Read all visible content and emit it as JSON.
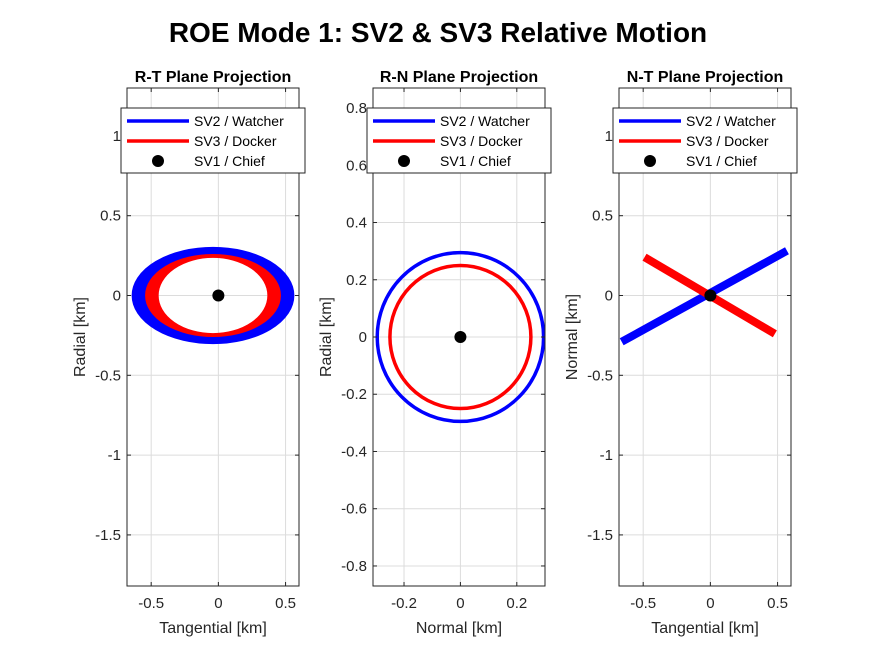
{
  "title": "ROE Mode 1: SV2 & SV3 Relative Motion",
  "colors": {
    "sv2": "#0000ff",
    "sv3": "#ff0000",
    "sv1": "#000000"
  },
  "legend": {
    "placement": "top",
    "entries": [
      {
        "label": "SV2 / Watcher",
        "color": "#0000ff",
        "marker": "line"
      },
      {
        "label": "SV3 / Docker",
        "color": "#ff0000",
        "marker": "line"
      },
      {
        "label": "SV1 / Chief",
        "color": "#000000",
        "marker": "dot"
      }
    ]
  },
  "chart_data": [
    {
      "type": "line",
      "title": "R-T Plane Projection",
      "xlabel": "Tangential [km]",
      "ylabel": "Radial [km]",
      "xlim": [
        -0.68,
        0.6
      ],
      "ylim": [
        -1.82,
        1.3
      ],
      "xticks": [
        -0.5,
        0,
        0.5
      ],
      "xtick_labels": [
        "-0.5",
        "0",
        "0.5"
      ],
      "yticks": [
        -1.5,
        -1,
        -0.5,
        0,
        0.5,
        1
      ],
      "ytick_labels": [
        "-1.5",
        "-1",
        "-0.5",
        "0",
        "0.5",
        "1"
      ],
      "grid": true,
      "series": [
        {
          "name": "SV2 / Watcher",
          "shape": "ellipse-band",
          "center": [
            -0.04,
            0
          ],
          "rx_outer": 0.6,
          "rx_inner": 0.5,
          "ry_outer": 0.3,
          "ry_inner": 0.255
        },
        {
          "name": "SV3 / Docker",
          "shape": "ellipse-band",
          "center": [
            -0.04,
            0
          ],
          "rx_outer": 0.5,
          "rx_inner": 0.41,
          "ry_outer": 0.255,
          "ry_inner": 0.24
        },
        {
          "name": "SV1 / Chief",
          "shape": "point",
          "x": 0,
          "y": 0
        }
      ]
    },
    {
      "type": "line",
      "title": "R-N Plane Projection",
      "xlabel": "Normal [km]",
      "ylabel": "Radial [km]",
      "xlim": [
        -0.31,
        0.3
      ],
      "ylim": [
        -0.87,
        0.87
      ],
      "xticks": [
        -0.2,
        0,
        0.2
      ],
      "xtick_labels": [
        "-0.2",
        "0",
        "0.2"
      ],
      "yticks": [
        -0.8,
        -0.6,
        -0.4,
        -0.2,
        0,
        0.2,
        0.4,
        0.6,
        0.8
      ],
      "ytick_labels": [
        "-0.8",
        "-0.6",
        "-0.4",
        "-0.2",
        "0",
        "0.2",
        "0.4",
        "0.6",
        "0.8"
      ],
      "grid": true,
      "series": [
        {
          "name": "SV2 / Watcher",
          "shape": "circle",
          "center": [
            0,
            0
          ],
          "r": 0.295
        },
        {
          "name": "SV3 / Docker",
          "shape": "circle",
          "center": [
            0,
            0
          ],
          "r": 0.25
        },
        {
          "name": "SV1 / Chief",
          "shape": "point",
          "x": 0,
          "y": 0
        }
      ]
    },
    {
      "type": "line",
      "title": "N-T Plane Projection",
      "xlabel": "Tangential [km]",
      "ylabel": "Normal [km]",
      "xlim": [
        -0.68,
        0.6
      ],
      "ylim": [
        -1.82,
        1.3
      ],
      "xticks": [
        -0.5,
        0,
        0.5
      ],
      "xtick_labels": [
        "-0.5",
        "0",
        "0.5"
      ],
      "yticks": [
        -1.5,
        -1,
        -0.5,
        0,
        0.5,
        1
      ],
      "ytick_labels": [
        "-1.5",
        "-1",
        "-0.5",
        "0",
        "0.5",
        "1"
      ],
      "grid": true,
      "series": [
        {
          "name": "SV2 / Watcher",
          "shape": "line-band",
          "x": [
            -0.66,
            0.57
          ],
          "y": [
            -0.29,
            0.28
          ]
        },
        {
          "name": "SV3 / Docker",
          "shape": "line-band",
          "x": [
            -0.49,
            0.48
          ],
          "y": [
            0.24,
            -0.24
          ]
        },
        {
          "name": "SV1 / Chief",
          "shape": "point",
          "x": 0,
          "y": 0
        }
      ]
    }
  ]
}
